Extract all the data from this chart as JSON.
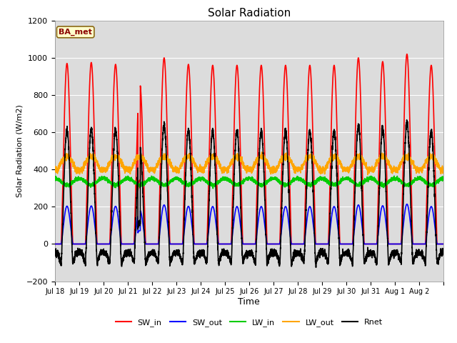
{
  "title": "Solar Radiation",
  "xlabel": "Time",
  "ylabel": "Solar Radiation (W/m2)",
  "ylim": [
    -200,
    1200
  ],
  "yticks": [
    -200,
    0,
    200,
    400,
    600,
    800,
    1000,
    1200
  ],
  "fig_bg_color": "#ffffff",
  "plot_bg_color": "#dcdcdc",
  "legend_label": "BA_met",
  "series": {
    "SW_in": {
      "color": "#ff0000",
      "lw": 1.2
    },
    "SW_out": {
      "color": "#0000ff",
      "lw": 1.2
    },
    "LW_in": {
      "color": "#00cc00",
      "lw": 1.2
    },
    "LW_out": {
      "color": "#ffa500",
      "lw": 1.2
    },
    "Rnet": {
      "color": "#000000",
      "lw": 1.2
    }
  },
  "xtick_labels": [
    "Jul 18",
    "Jul 19",
    "Jul 20",
    "Jul 21",
    "Jul 22",
    "Jul 23",
    "Jul 24",
    "Jul 25",
    "Jul 26",
    "Jul 27",
    "Jul 28",
    "Jul 29",
    "Jul 30",
    "Jul 31",
    "Aug 1",
    "Aug 2"
  ],
  "n_days": 16,
  "sw_peaks": [
    970,
    975,
    965,
    860,
    1000,
    965,
    960,
    960,
    960,
    960,
    960,
    960,
    1000,
    980,
    1020,
    960
  ]
}
